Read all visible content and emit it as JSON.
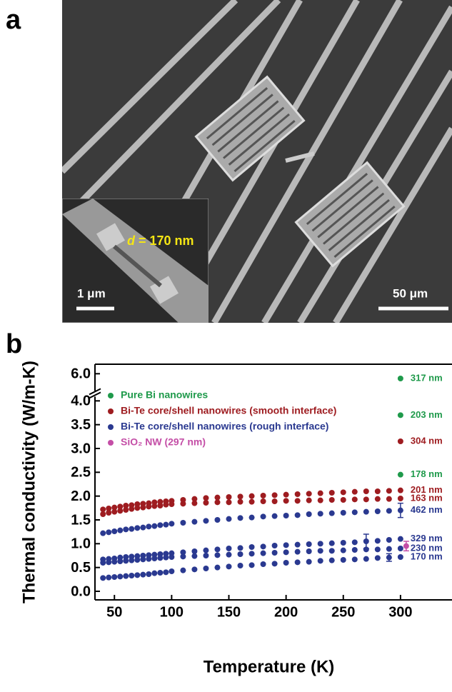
{
  "figure": {
    "panel_labels": [
      "a",
      "b"
    ],
    "image": {
      "annotation_symbol": "d",
      "annotation_text": "= 170 nm",
      "inset_scale_bar": "1 μm",
      "scale_bar": "50 μm"
    }
  },
  "chart_data": {
    "type": "scatter",
    "x_label": "Temperature (K)",
    "y_label": "Thermal conductivity (W/m-K)",
    "xlim": [
      33,
      345
    ],
    "ylim": [
      -0.18,
      6.2
    ],
    "ybreak": [
      4.15,
      5.58
    ],
    "xticks": [
      50,
      100,
      150,
      200,
      250,
      300
    ],
    "yticks": [
      {
        "value": 0,
        "label": "0.0"
      },
      {
        "value": 0.5,
        "label": "0.5"
      },
      {
        "value": 1,
        "label": "1.0"
      },
      {
        "value": 1.5,
        "label": "1.5"
      },
      {
        "value": 2,
        "label": "2.0"
      },
      {
        "value": 2.5,
        "label": "2.5"
      },
      {
        "value": 3,
        "label": "3.0"
      },
      {
        "value": 3.5,
        "label": "3.5"
      },
      {
        "value": 4,
        "label": "4.0"
      },
      {
        "value": 6,
        "label": "6.0"
      }
    ],
    "legend": "upper left",
    "x": [
      40,
      45,
      50,
      55,
      60,
      65,
      70,
      75,
      80,
      85,
      90,
      95,
      100,
      110,
      120,
      130,
      140,
      150,
      160,
      170,
      180,
      190,
      200,
      210,
      220,
      230,
      240,
      250,
      260,
      270,
      280,
      290,
      300
    ],
    "series": [
      {
        "name": "Pure Bi nanowires",
        "color": "#1f9a4b",
        "curves": [
          {
            "label": "317 nm",
            "x": [
              300
            ],
            "values": [
              5.9
            ]
          },
          {
            "label": "203 nm",
            "x": [
              300
            ],
            "values": [
              3.7
            ]
          },
          {
            "label": "178 nm",
            "x": [
              300
            ],
            "values": [
              2.45
            ]
          }
        ]
      },
      {
        "name": "Bi-Te core/shell nanowires (smooth interface)",
        "color": "#9e1c20",
        "curves": [
          {
            "label": "304 nm",
            "x": [
              300
            ],
            "values": [
              3.15
            ]
          },
          {
            "label": "201 nm",
            "values": [
              1.72,
              1.74,
              1.76,
              1.78,
              1.8,
              1.81,
              1.83,
              1.84,
              1.85,
              1.87,
              1.88,
              1.89,
              1.9,
              1.92,
              1.94,
              1.96,
              1.97,
              1.98,
              1.99,
              2.0,
              2.01,
              2.02,
              2.03,
              2.04,
              2.05,
              2.06,
              2.07,
              2.08,
              2.09,
              2.1,
              2.1,
              2.11,
              2.12
            ]
          },
          {
            "label": "163 nm",
            "values": [
              1.62,
              1.65,
              1.67,
              1.69,
              1.71,
              1.73,
              1.75,
              1.76,
              1.78,
              1.79,
              1.8,
              1.82,
              1.83,
              1.84,
              1.85,
              1.86,
              1.87,
              1.87,
              1.88,
              1.88,
              1.89,
              1.89,
              1.9,
              1.9,
              1.91,
              1.91,
              1.92,
              1.92,
              1.93,
              1.93,
              1.94,
              1.94,
              1.95
            ]
          }
        ]
      },
      {
        "name": "Bi-Te core/shell nanowires (rough interface)",
        "color": "#2a3990",
        "curves": [
          {
            "label": "462 nm",
            "values": [
              1.22,
              1.24,
              1.26,
              1.28,
              1.3,
              1.31,
              1.33,
              1.34,
              1.36,
              1.37,
              1.39,
              1.4,
              1.42,
              1.44,
              1.46,
              1.48,
              1.5,
              1.52,
              1.54,
              1.55,
              1.57,
              1.58,
              1.59,
              1.6,
              1.62,
              1.63,
              1.64,
              1.65,
              1.66,
              1.67,
              1.68,
              1.69,
              1.7
            ],
            "errors": [
              null,
              null,
              null,
              null,
              null,
              null,
              null,
              null,
              null,
              null,
              null,
              null,
              null,
              null,
              null,
              null,
              null,
              null,
              null,
              null,
              null,
              null,
              null,
              null,
              null,
              null,
              null,
              null,
              null,
              null,
              null,
              null,
              0.15
            ]
          },
          {
            "label": "329 nm",
            "values": [
              0.67,
              0.68,
              0.69,
              0.71,
              0.72,
              0.73,
              0.74,
              0.75,
              0.76,
              0.77,
              0.78,
              0.79,
              0.8,
              0.82,
              0.84,
              0.86,
              0.88,
              0.9,
              0.91,
              0.93,
              0.94,
              0.96,
              0.97,
              0.98,
              0.99,
              1.0,
              1.01,
              1.02,
              1.03,
              1.05,
              1.06,
              1.08,
              1.1
            ],
            "errors": [
              null,
              null,
              null,
              null,
              null,
              null,
              null,
              null,
              null,
              null,
              null,
              null,
              null,
              null,
              null,
              null,
              null,
              null,
              null,
              null,
              null,
              null,
              null,
              null,
              null,
              null,
              null,
              null,
              null,
              0.15,
              null,
              null,
              null
            ]
          },
          {
            "label": "230 nm",
            "values": [
              0.6,
              0.61,
              0.62,
              0.63,
              0.64,
              0.65,
              0.66,
              0.67,
              0.68,
              0.69,
              0.7,
              0.71,
              0.72,
              0.73,
              0.74,
              0.75,
              0.76,
              0.77,
              0.78,
              0.79,
              0.8,
              0.81,
              0.82,
              0.83,
              0.84,
              0.85,
              0.85,
              0.86,
              0.87,
              0.88,
              0.88,
              0.89,
              0.9
            ]
          },
          {
            "label": "170 nm",
            "values": [
              0.28,
              0.29,
              0.3,
              0.31,
              0.32,
              0.33,
              0.34,
              0.35,
              0.36,
              0.38,
              0.39,
              0.4,
              0.42,
              0.44,
              0.46,
              0.48,
              0.5,
              0.52,
              0.54,
              0.55,
              0.57,
              0.58,
              0.6,
              0.61,
              0.62,
              0.64,
              0.65,
              0.66,
              0.67,
              0.68,
              0.7,
              0.71,
              0.72
            ],
            "errors": [
              null,
              null,
              null,
              null,
              null,
              null,
              null,
              null,
              null,
              null,
              null,
              null,
              null,
              null,
              null,
              null,
              null,
              null,
              null,
              null,
              null,
              null,
              null,
              null,
              null,
              null,
              null,
              null,
              null,
              null,
              null,
              0.08,
              null
            ]
          }
        ]
      },
      {
        "name": "SiO₂ NW (297 nm)",
        "color": "#c44ea6",
        "curves": [
          {
            "x": [
              305
            ],
            "values": [
              0.95
            ],
            "errors": [
              0.1
            ]
          }
        ]
      }
    ]
  }
}
